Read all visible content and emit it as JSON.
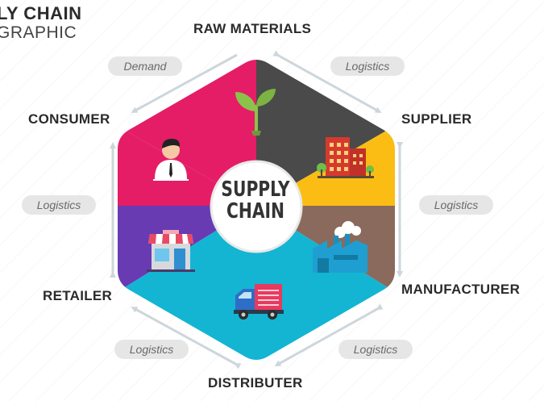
{
  "title": {
    "line1": "LY CHAIN",
    "line2": "GRAPHIC"
  },
  "center": {
    "line1": "SUPPLY",
    "line2": "CHAIN"
  },
  "stages": {
    "raw_materials": "RAW MATERIALS",
    "supplier": "SUPPLIER",
    "manufacturer": "MANUFACTURER",
    "distributer": "DISTRIBUTER",
    "retailer": "RETAILER",
    "consumer": "CONSUMER"
  },
  "links": {
    "demand": "Demand",
    "logistics_top_right": "Logistics",
    "logistics_right": "Logistics",
    "logistics_bottom_right": "Logistics",
    "logistics_bottom_left": "Logistics",
    "logistics_left": "Logistics"
  },
  "colors": {
    "raw_materials": "#4a4a4a",
    "supplier": "#fbbd14",
    "manufacturer": "#8a6a5c",
    "distributer": "#13b5d3",
    "retailer": "#683bb2",
    "consumer": "#e41d66",
    "arrow": "#cdd6db",
    "pill": "#e6e6e6"
  },
  "icons": [
    "sprout-icon",
    "building-icon",
    "factory-icon",
    "truck-icon",
    "store-icon",
    "person-icon"
  ]
}
